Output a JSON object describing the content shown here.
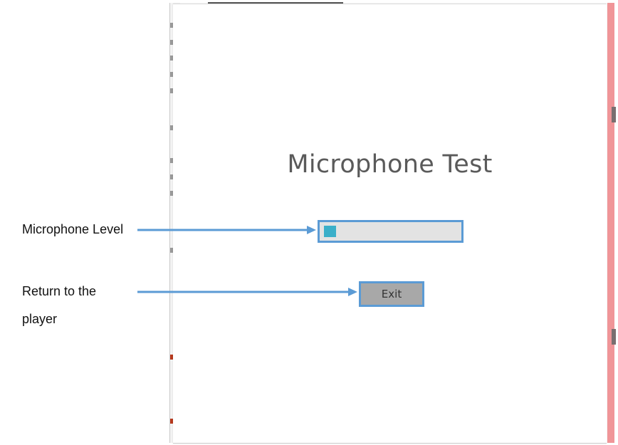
{
  "dialog": {
    "title": "Microphone Test",
    "level_meter": {
      "level_fraction": 0.09,
      "fill_color": "#3bafc9",
      "track_color": "#e3e3e3"
    },
    "exit_button": {
      "label": "Exit"
    }
  },
  "annotations": [
    {
      "label": "Microphone Level",
      "target": "level-meter"
    },
    {
      "label": "Return to the\nplayer",
      "target": "exit-button"
    }
  ],
  "colors": {
    "highlight_border": "#5b9bd5",
    "arrow": "#5b9bd5",
    "title_text": "#5a5a5a",
    "right_edge": "#f09598"
  }
}
